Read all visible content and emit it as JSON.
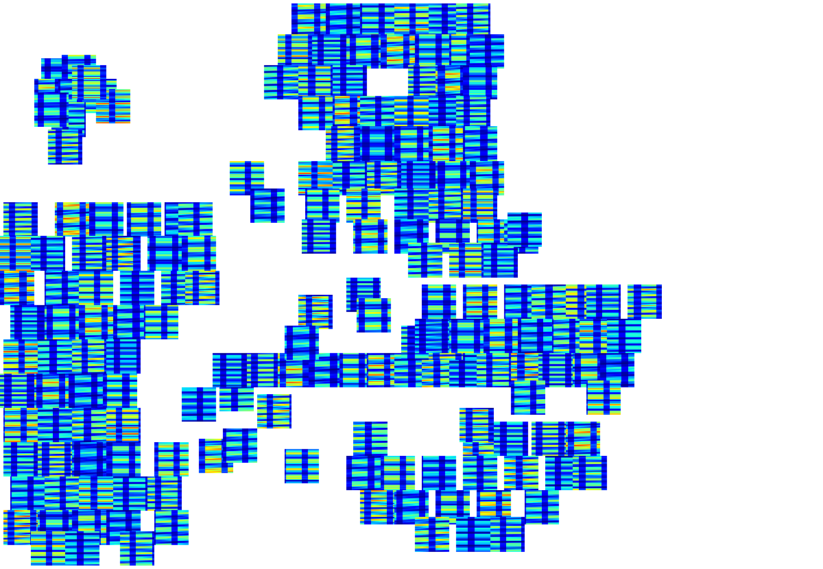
{
  "chart_data": {
    "type": "scatter",
    "tick_labels": false,
    "xlim": [
      0,
      1200
    ],
    "ylim": [
      830,
      0
    ],
    "x": [
      85,
      115,
      75,
      110,
      145,
      165,
      100,
      95,
      130,
      75,
      450,
      500,
      550,
      600,
      650,
      690,
      430,
      480,
      530,
      580,
      630,
      680,
      710,
      410,
      460,
      510,
      620,
      660,
      700,
      460,
      510,
      550,
      600,
      650,
      690,
      500,
      550,
      600,
      650,
      700,
      360,
      460,
      510,
      560,
      610,
      660,
      710,
      390,
      470,
      530,
      600,
      650,
      700,
      465,
      540,
      600,
      660,
      720,
      760,
      620,
      680,
      730,
      30,
      105,
      155,
      210,
      265,
      285,
      20,
      70,
      130,
      180,
      240,
      290,
      25,
      90,
      140,
      200,
      260,
      295,
      40,
      90,
      140,
      190,
      235,
      30,
      80,
      130,
      180,
      25,
      75,
      125,
      175,
      30,
      80,
      130,
      180,
      30,
      80,
      130,
      180,
      250,
      40,
      90,
      140,
      190,
      240,
      30,
      80,
      130,
      180,
      250,
      70,
      120,
      200,
      460,
      530,
      545,
      315,
      350,
      440,
      290,
      345,
      400,
      335,
      385,
      430,
      475,
      520,
      560,
      600,
      640,
      680,
      610,
      650,
      440,
      640,
      700,
      760,
      800,
      850,
      880,
      940,
      630,
      680,
      730,
      780,
      830,
      870,
      910,
      720,
      770,
      810,
      860,
      900,
      770,
      880,
      765,
      540,
      700,
      745,
      800,
      850,
      530,
      580,
      640,
      700,
      760,
      820,
      860,
      550,
      600,
      660,
      720,
      790,
      630,
      690,
      740,
      695
    ],
    "y": [
      110,
      105,
      140,
      140,
      140,
      155,
      175,
      215,
      120,
      160,
      30,
      30,
      30,
      30,
      30,
      30,
      75,
      75,
      75,
      75,
      75,
      75,
      75,
      120,
      120,
      120,
      120,
      120,
      120,
      165,
      165,
      165,
      165,
      165,
      165,
      210,
      210,
      210,
      210,
      210,
      260,
      260,
      260,
      260,
      260,
      260,
      260,
      300,
      300,
      300,
      300,
      300,
      300,
      345,
      345,
      345,
      345,
      345,
      345,
      380,
      380,
      380,
      320,
      320,
      320,
      320,
      320,
      320,
      370,
      370,
      370,
      370,
      370,
      370,
      420,
      420,
      420,
      420,
      420,
      420,
      470,
      470,
      470,
      470,
      470,
      520,
      520,
      520,
      520,
      570,
      570,
      570,
      570,
      620,
      620,
      620,
      620,
      670,
      670,
      670,
      670,
      670,
      720,
      720,
      720,
      720,
      720,
      770,
      770,
      770,
      770,
      770,
      800,
      800,
      800,
      455,
      430,
      460,
      665,
      650,
      680,
      590,
      575,
      600,
      540,
      540,
      540,
      540,
      540,
      540,
      540,
      540,
      540,
      500,
      500,
      500,
      440,
      440,
      440,
      440,
      440,
      440,
      440,
      490,
      490,
      490,
      490,
      490,
      490,
      490,
      540,
      540,
      540,
      540,
      540,
      580,
      580,
      335,
      640,
      640,
      640,
      640,
      640,
      690,
      690,
      690,
      690,
      690,
      690,
      690,
      740,
      740,
      740,
      740,
      740,
      780,
      780,
      780,
      620
    ]
  }
}
